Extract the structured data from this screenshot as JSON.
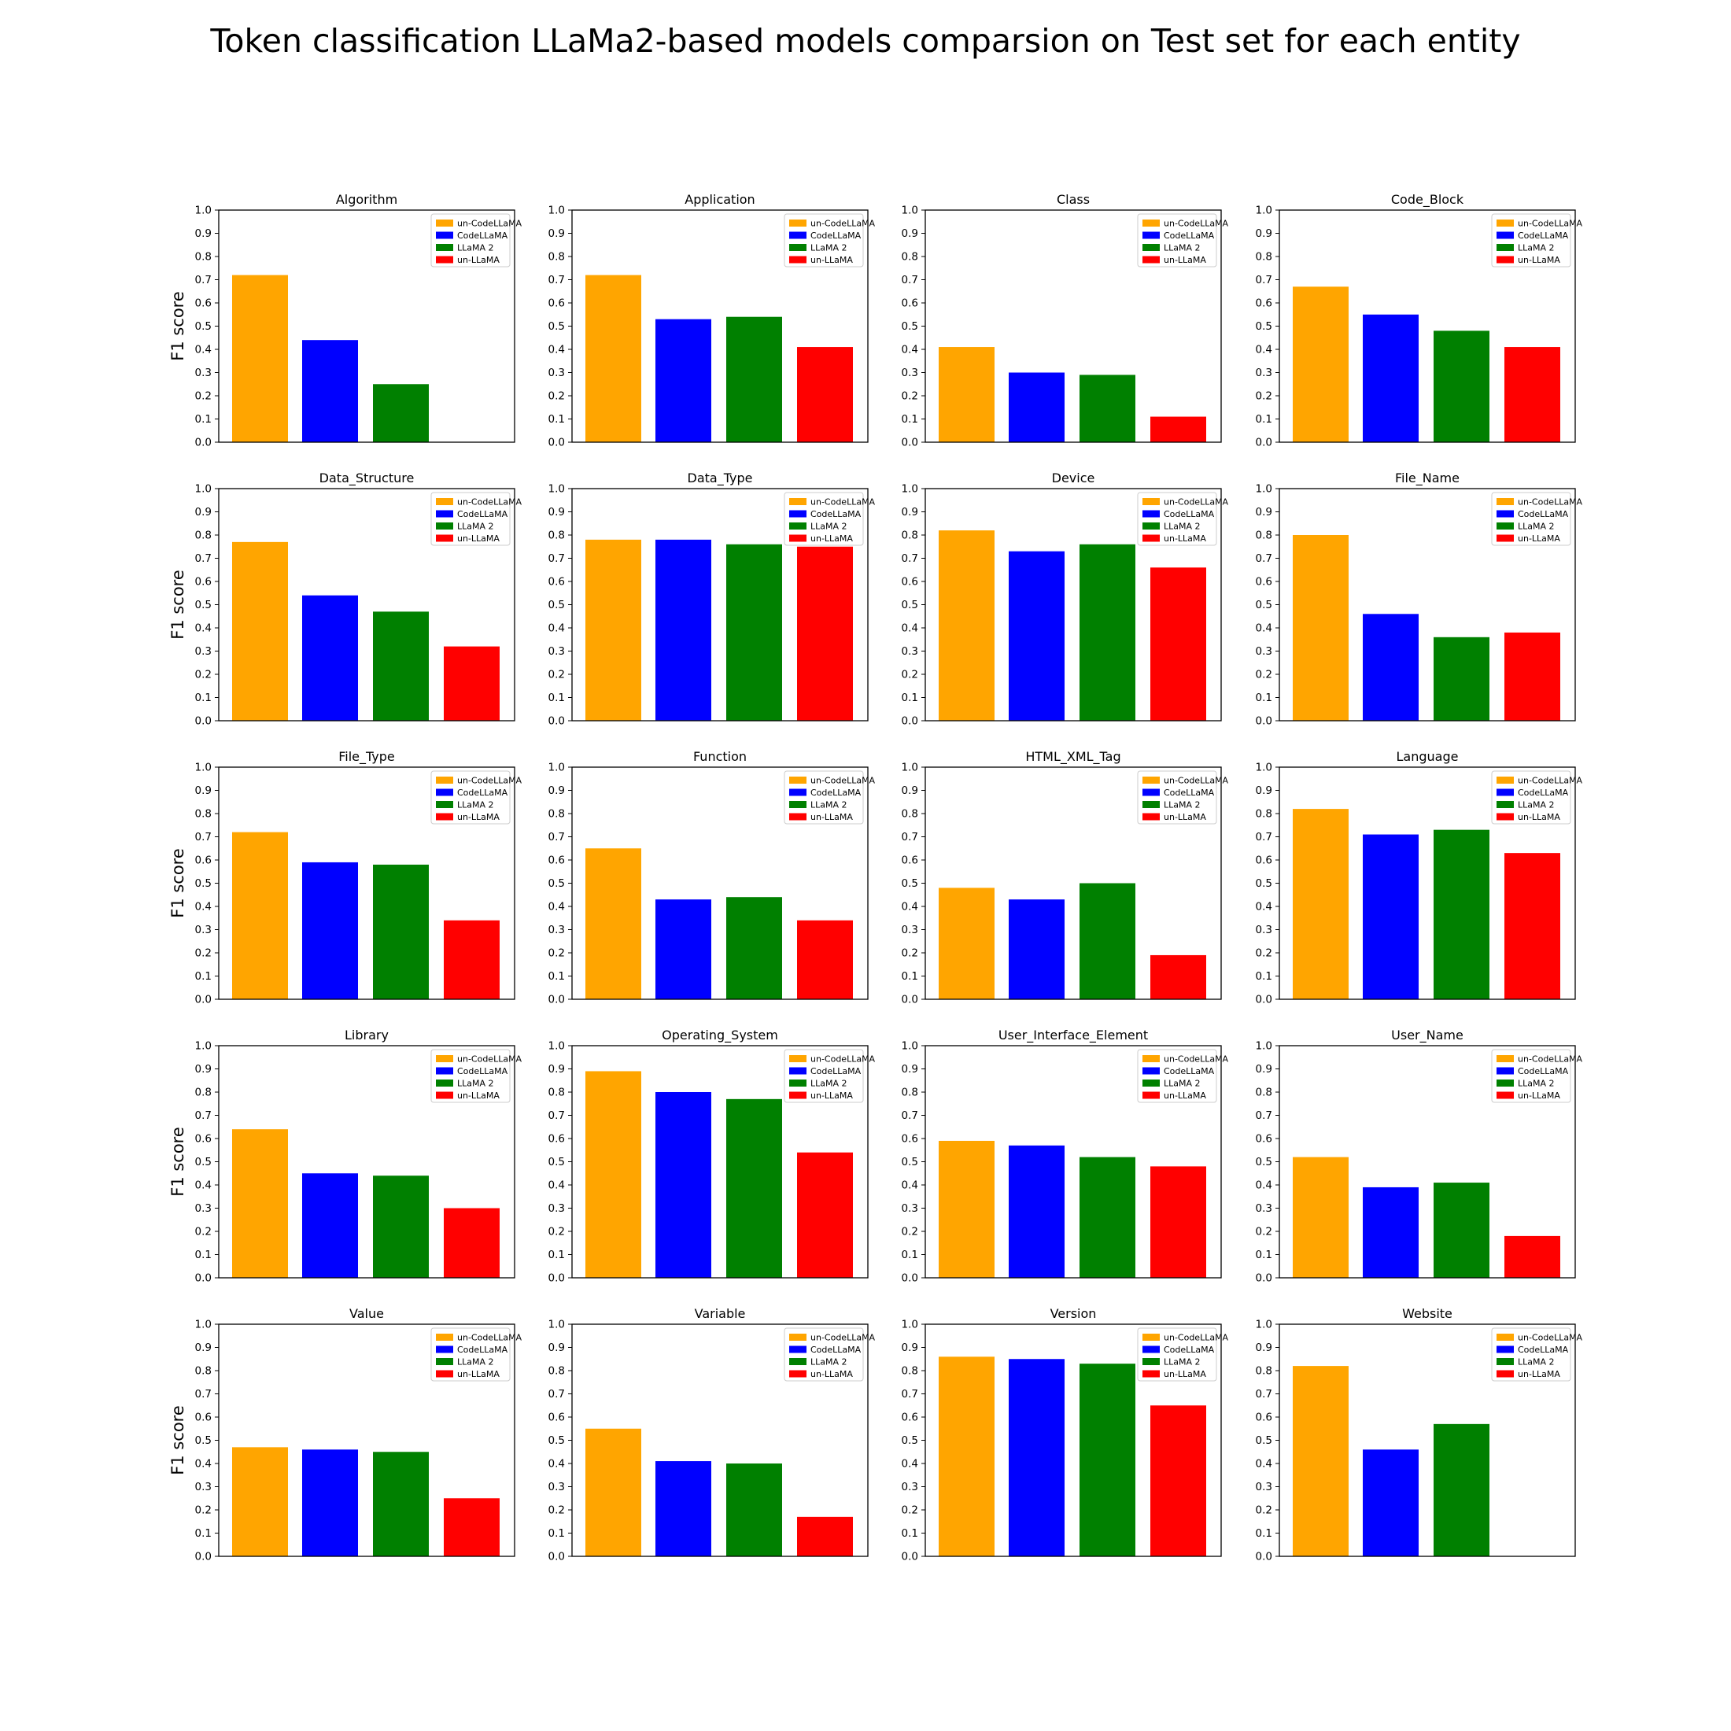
{
  "figure": {
    "title": "Token classification LLaMa2-based models comparsion on Test set for each entity"
  },
  "legend": {
    "placement": "top-right",
    "entries": [
      {
        "label": "un-CodeLLaMA",
        "color": "#ffa500"
      },
      {
        "label": "CodeLLaMA",
        "color": "#0000ff"
      },
      {
        "label": "LLaMA 2",
        "color": "#008000"
      },
      {
        "label": "un-LLaMA",
        "color": "#ff0000"
      }
    ]
  },
  "chart_data": [
    {
      "type": "bar",
      "title": "Algorithm",
      "ylabel": "F1 score",
      "ylim": [
        0,
        1.0
      ],
      "yticks": [
        "0.0",
        "0.1",
        "0.2",
        "0.3",
        "0.4",
        "0.5",
        "0.6",
        "0.7",
        "0.8",
        "0.9",
        "1.0"
      ],
      "categories": [
        "un-CodeLLaMA",
        "CodeLLaMA",
        "LLaMA 2",
        "un-LLaMA"
      ],
      "values": [
        0.72,
        0.44,
        0.25,
        0
      ]
    },
    {
      "type": "bar",
      "title": "Application",
      "ylabel": "",
      "ylim": [
        0,
        1.0
      ],
      "yticks": [
        "0.0",
        "0.1",
        "0.2",
        "0.3",
        "0.4",
        "0.5",
        "0.6",
        "0.7",
        "0.8",
        "0.9",
        "1.0"
      ],
      "categories": [
        "un-CodeLLaMA",
        "CodeLLaMA",
        "LLaMA 2",
        "un-LLaMA"
      ],
      "values": [
        0.72,
        0.53,
        0.54,
        0.41
      ]
    },
    {
      "type": "bar",
      "title": "Class",
      "ylabel": "",
      "ylim": [
        0,
        1.0
      ],
      "yticks": [
        "0.0",
        "0.1",
        "0.2",
        "0.3",
        "0.4",
        "0.5",
        "0.6",
        "0.7",
        "0.8",
        "0.9",
        "1.0"
      ],
      "categories": [
        "un-CodeLLaMA",
        "CodeLLaMA",
        "LLaMA 2",
        "un-LLaMA"
      ],
      "values": [
        0.41,
        0.3,
        0.29,
        0.11
      ]
    },
    {
      "type": "bar",
      "title": "Code_Block",
      "ylabel": "",
      "ylim": [
        0,
        1.0
      ],
      "yticks": [
        "0.0",
        "0.1",
        "0.2",
        "0.3",
        "0.4",
        "0.5",
        "0.6",
        "0.7",
        "0.8",
        "0.9",
        "1.0"
      ],
      "categories": [
        "un-CodeLLaMA",
        "CodeLLaMA",
        "LLaMA 2",
        "un-LLaMA"
      ],
      "values": [
        0.67,
        0.55,
        0.48,
        0.41
      ]
    },
    {
      "type": "bar",
      "title": "Data_Structure",
      "ylabel": "F1 score",
      "ylim": [
        0,
        1.0
      ],
      "yticks": [
        "0.0",
        "0.1",
        "0.2",
        "0.3",
        "0.4",
        "0.5",
        "0.6",
        "0.7",
        "0.8",
        "0.9",
        "1.0"
      ],
      "categories": [
        "un-CodeLLaMA",
        "CodeLLaMA",
        "LLaMA 2",
        "un-LLaMA"
      ],
      "values": [
        0.77,
        0.54,
        0.47,
        0.32
      ]
    },
    {
      "type": "bar",
      "title": "Data_Type",
      "ylabel": "",
      "ylim": [
        0,
        1.0
      ],
      "yticks": [
        "0.0",
        "0.1",
        "0.2",
        "0.3",
        "0.4",
        "0.5",
        "0.6",
        "0.7",
        "0.8",
        "0.9",
        "1.0"
      ],
      "categories": [
        "un-CodeLLaMA",
        "CodeLLaMA",
        "LLaMA 2",
        "un-LLaMA"
      ],
      "values": [
        0.78,
        0.78,
        0.76,
        0.75
      ]
    },
    {
      "type": "bar",
      "title": "Device",
      "ylabel": "",
      "ylim": [
        0,
        1.0
      ],
      "yticks": [
        "0.0",
        "0.1",
        "0.2",
        "0.3",
        "0.4",
        "0.5",
        "0.6",
        "0.7",
        "0.8",
        "0.9",
        "1.0"
      ],
      "categories": [
        "un-CodeLLaMA",
        "CodeLLaMA",
        "LLaMA 2",
        "un-LLaMA"
      ],
      "values": [
        0.82,
        0.73,
        0.76,
        0.66
      ]
    },
    {
      "type": "bar",
      "title": "File_Name",
      "ylabel": "",
      "ylim": [
        0,
        1.0
      ],
      "yticks": [
        "0.0",
        "0.1",
        "0.2",
        "0.3",
        "0.4",
        "0.5",
        "0.6",
        "0.7",
        "0.8",
        "0.9",
        "1.0"
      ],
      "categories": [
        "un-CodeLLaMA",
        "CodeLLaMA",
        "LLaMA 2",
        "un-LLaMA"
      ],
      "values": [
        0.8,
        0.46,
        0.36,
        0.38
      ]
    },
    {
      "type": "bar",
      "title": "File_Type",
      "ylabel": "F1 score",
      "ylim": [
        0,
        1.0
      ],
      "yticks": [
        "0.0",
        "0.1",
        "0.2",
        "0.3",
        "0.4",
        "0.5",
        "0.6",
        "0.7",
        "0.8",
        "0.9",
        "1.0"
      ],
      "categories": [
        "un-CodeLLaMA",
        "CodeLLaMA",
        "LLaMA 2",
        "un-LLaMA"
      ],
      "values": [
        0.72,
        0.59,
        0.58,
        0.34
      ]
    },
    {
      "type": "bar",
      "title": "Function",
      "ylabel": "",
      "ylim": [
        0,
        1.0
      ],
      "yticks": [
        "0.0",
        "0.1",
        "0.2",
        "0.3",
        "0.4",
        "0.5",
        "0.6",
        "0.7",
        "0.8",
        "0.9",
        "1.0"
      ],
      "categories": [
        "un-CodeLLaMA",
        "CodeLLaMA",
        "LLaMA 2",
        "un-LLaMA"
      ],
      "values": [
        0.65,
        0.43,
        0.44,
        0.34
      ]
    },
    {
      "type": "bar",
      "title": "HTML_XML_Tag",
      "ylabel": "",
      "ylim": [
        0,
        1.0
      ],
      "yticks": [
        "0.0",
        "0.1",
        "0.2",
        "0.3",
        "0.4",
        "0.5",
        "0.6",
        "0.7",
        "0.8",
        "0.9",
        "1.0"
      ],
      "categories": [
        "un-CodeLLaMA",
        "CodeLLaMA",
        "LLaMA 2",
        "un-LLaMA"
      ],
      "values": [
        0.48,
        0.43,
        0.5,
        0.19
      ]
    },
    {
      "type": "bar",
      "title": "Language",
      "ylabel": "",
      "ylim": [
        0,
        1.0
      ],
      "yticks": [
        "0.0",
        "0.1",
        "0.2",
        "0.3",
        "0.4",
        "0.5",
        "0.6",
        "0.7",
        "0.8",
        "0.9",
        "1.0"
      ],
      "categories": [
        "un-CodeLLaMA",
        "CodeLLaMA",
        "LLaMA 2",
        "un-LLaMA"
      ],
      "values": [
        0.82,
        0.71,
        0.73,
        0.63
      ]
    },
    {
      "type": "bar",
      "title": "Library",
      "ylabel": "F1 score",
      "ylim": [
        0,
        1.0
      ],
      "yticks": [
        "0.0",
        "0.1",
        "0.2",
        "0.3",
        "0.4",
        "0.5",
        "0.6",
        "0.7",
        "0.8",
        "0.9",
        "1.0"
      ],
      "categories": [
        "un-CodeLLaMA",
        "CodeLLaMA",
        "LLaMA 2",
        "un-LLaMA"
      ],
      "values": [
        0.64,
        0.45,
        0.44,
        0.3
      ]
    },
    {
      "type": "bar",
      "title": "Operating_System",
      "ylabel": "",
      "ylim": [
        0,
        1.0
      ],
      "yticks": [
        "0.0",
        "0.1",
        "0.2",
        "0.3",
        "0.4",
        "0.5",
        "0.6",
        "0.7",
        "0.8",
        "0.9",
        "1.0"
      ],
      "categories": [
        "un-CodeLLaMA",
        "CodeLLaMA",
        "LLaMA 2",
        "un-LLaMA"
      ],
      "values": [
        0.89,
        0.8,
        0.77,
        0.54
      ]
    },
    {
      "type": "bar",
      "title": "User_Interface_Element",
      "ylabel": "",
      "ylim": [
        0,
        1.0
      ],
      "yticks": [
        "0.0",
        "0.1",
        "0.2",
        "0.3",
        "0.4",
        "0.5",
        "0.6",
        "0.7",
        "0.8",
        "0.9",
        "1.0"
      ],
      "categories": [
        "un-CodeLLaMA",
        "CodeLLaMA",
        "LLaMA 2",
        "un-LLaMA"
      ],
      "values": [
        0.59,
        0.57,
        0.52,
        0.48
      ]
    },
    {
      "type": "bar",
      "title": "User_Name",
      "ylabel": "",
      "ylim": [
        0,
        1.0
      ],
      "yticks": [
        "0.0",
        "0.1",
        "0.2",
        "0.3",
        "0.4",
        "0.5",
        "0.6",
        "0.7",
        "0.8",
        "0.9",
        "1.0"
      ],
      "categories": [
        "un-CodeLLaMA",
        "CodeLLaMA",
        "LLaMA 2",
        "un-LLaMA"
      ],
      "values": [
        0.52,
        0.39,
        0.41,
        0.18
      ]
    },
    {
      "type": "bar",
      "title": "Value",
      "ylabel": "F1 score",
      "ylim": [
        0,
        1.0
      ],
      "yticks": [
        "0.0",
        "0.1",
        "0.2",
        "0.3",
        "0.4",
        "0.5",
        "0.6",
        "0.7",
        "0.8",
        "0.9",
        "1.0"
      ],
      "categories": [
        "un-CodeLLaMA",
        "CodeLLaMA",
        "LLaMA 2",
        "un-LLaMA"
      ],
      "values": [
        0.47,
        0.46,
        0.45,
        0.25
      ]
    },
    {
      "type": "bar",
      "title": "Variable",
      "ylabel": "",
      "ylim": [
        0,
        1.0
      ],
      "yticks": [
        "0.0",
        "0.1",
        "0.2",
        "0.3",
        "0.4",
        "0.5",
        "0.6",
        "0.7",
        "0.8",
        "0.9",
        "1.0"
      ],
      "categories": [
        "un-CodeLLaMA",
        "CodeLLaMA",
        "LLaMA 2",
        "un-LLaMA"
      ],
      "values": [
        0.55,
        0.41,
        0.4,
        0.17
      ]
    },
    {
      "type": "bar",
      "title": "Version",
      "ylabel": "",
      "ylim": [
        0,
        1.0
      ],
      "yticks": [
        "0.0",
        "0.1",
        "0.2",
        "0.3",
        "0.4",
        "0.5",
        "0.6",
        "0.7",
        "0.8",
        "0.9",
        "1.0"
      ],
      "categories": [
        "un-CodeLLaMA",
        "CodeLLaMA",
        "LLaMA 2",
        "un-LLaMA"
      ],
      "values": [
        0.86,
        0.85,
        0.83,
        0.65
      ]
    },
    {
      "type": "bar",
      "title": "Website",
      "ylabel": "",
      "ylim": [
        0,
        1.0
      ],
      "yticks": [
        "0.0",
        "0.1",
        "0.2",
        "0.3",
        "0.4",
        "0.5",
        "0.6",
        "0.7",
        "0.8",
        "0.9",
        "1.0"
      ],
      "categories": [
        "un-CodeLLaMA",
        "CodeLLaMA",
        "LLaMA 2",
        "un-LLaMA"
      ],
      "values": [
        0.82,
        0.46,
        0.57,
        0
      ]
    }
  ]
}
